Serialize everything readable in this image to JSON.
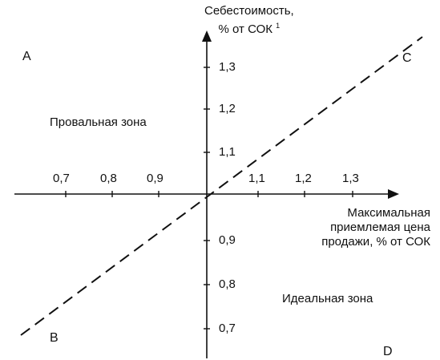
{
  "y_axis_title": {
    "line1": "Себестоимость,",
    "line2": "% от СОК",
    "footnote": "1"
  },
  "x_axis_title": {
    "line1": "Максимальная",
    "line2": "приемлемая цена",
    "line3": "продажи, % от СОК"
  },
  "x_ticks_left": [
    "0,7",
    "0,8",
    "0,9"
  ],
  "x_ticks_right": [
    "1,1",
    "1,2",
    "1,3"
  ],
  "y_ticks_upper": [
    "1,3",
    "1,2",
    "1,1"
  ],
  "y_ticks_lower": [
    "0,9",
    "0,8",
    "0,7"
  ],
  "corners": {
    "a": "A",
    "b": "B",
    "c": "C",
    "d": "D"
  },
  "zones": {
    "failure": "Провальная зона",
    "ideal": "Идеальная зона"
  },
  "colors": {
    "ink": "#111111",
    "background": "#ffffff"
  }
}
